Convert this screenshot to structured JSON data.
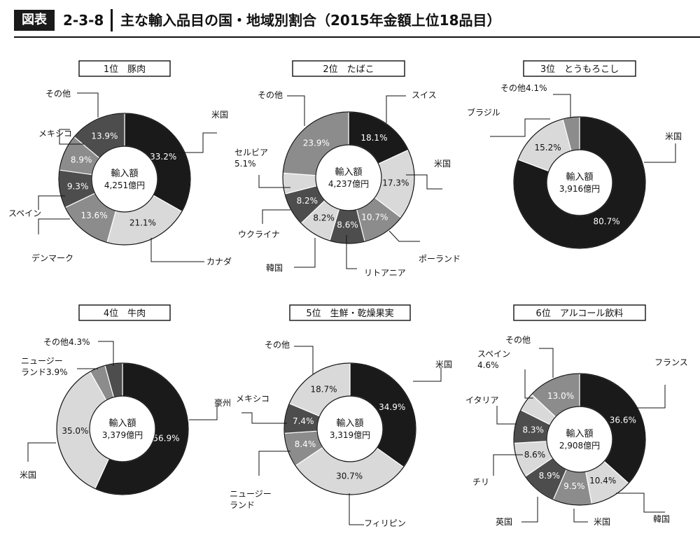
{
  "header": {
    "badge": "図表",
    "figure_number": "2-3-8",
    "title": "主な輸入品目の国・地域別割合（2015年金額上位18品目）"
  },
  "center_label": "輸入額",
  "colors": {
    "black": "#1a1a1a",
    "dark": "#4d4d4d",
    "mid": "#8c8c8c",
    "light": "#d9d9d9",
    "text": "#111111"
  },
  "chart_data": [
    {
      "type": "pie",
      "title": "1位　豚肉",
      "total": "4,251億円",
      "slices": [
        {
          "name": "米国",
          "value": 33.2,
          "label": "33.2%",
          "tone": "black"
        },
        {
          "name": "カナダ",
          "value": 21.1,
          "label": "21.1%",
          "tone": "light"
        },
        {
          "name": "デンマーク",
          "value": 13.6,
          "label": "13.6%",
          "tone": "mid"
        },
        {
          "name": "スペイン",
          "value": 9.3,
          "label": "9.3%",
          "tone": "dark"
        },
        {
          "name": "メキシコ",
          "value": 8.9,
          "label": "8.9%",
          "tone": "mid"
        },
        {
          "name": "その他",
          "value": 13.9,
          "label": "13.9%",
          "tone": "dark"
        }
      ]
    },
    {
      "type": "pie",
      "title": "2位　たばこ",
      "total": "4,237億円",
      "slices": [
        {
          "name": "スイス",
          "value": 18.1,
          "label": "18.1%",
          "tone": "black"
        },
        {
          "name": "米国",
          "value": 17.3,
          "label": "17.3%",
          "tone": "light"
        },
        {
          "name": "ポーランド",
          "value": 10.7,
          "label": "10.7%",
          "tone": "mid"
        },
        {
          "name": "リトアニア",
          "value": 8.6,
          "label": "8.6%",
          "tone": "dark"
        },
        {
          "name": "韓国",
          "value": 8.2,
          "label": "8.2%",
          "tone": "light"
        },
        {
          "name": "ウクライナ",
          "value": 8.2,
          "label": "8.2%",
          "tone": "dark"
        },
        {
          "name": "セルビア",
          "value": 5.1,
          "label": "",
          "tone": "light"
        },
        {
          "name": "その他",
          "value": 23.9,
          "label": "23.9%",
          "tone": "mid"
        }
      ]
    },
    {
      "type": "pie",
      "title": "3位　とうもろこし",
      "total": "3,916億円",
      "slices": [
        {
          "name": "米国",
          "value": 80.7,
          "label": "80.7%",
          "tone": "black"
        },
        {
          "name": "ブラジル",
          "value": 15.2,
          "label": "15.2%",
          "tone": "light"
        },
        {
          "name": "その他",
          "value": 4.1,
          "label": "",
          "tone": "mid"
        }
      ]
    },
    {
      "type": "pie",
      "title": "4位　牛肉",
      "total": "3,379億円",
      "slices": [
        {
          "name": "豪州",
          "value": 56.9,
          "label": "56.9%",
          "tone": "black"
        },
        {
          "name": "米国",
          "value": 35.0,
          "label": "35.0%",
          "tone": "light"
        },
        {
          "name": "ニュージーランド",
          "value": 3.9,
          "label": "",
          "tone": "mid"
        },
        {
          "name": "その他",
          "value": 4.3,
          "label": "",
          "tone": "dark"
        }
      ]
    },
    {
      "type": "pie",
      "title": "5位　生鮮・乾燥果実",
      "total": "3,319億円",
      "slices": [
        {
          "name": "米国",
          "value": 34.9,
          "label": "34.9%",
          "tone": "black"
        },
        {
          "name": "フィリピン",
          "value": 30.7,
          "label": "30.7%",
          "tone": "light"
        },
        {
          "name": "ニュージーランド",
          "value": 8.4,
          "label": "8.4%",
          "tone": "mid"
        },
        {
          "name": "メキシコ",
          "value": 7.4,
          "label": "7.4%",
          "tone": "dark"
        },
        {
          "name": "その他",
          "value": 18.7,
          "label": "18.7%",
          "tone": "light"
        }
      ]
    },
    {
      "type": "pie",
      "title": "6位　アルコール飲料",
      "total": "2,908億円",
      "slices": [
        {
          "name": "フランス",
          "value": 36.6,
          "label": "36.6%",
          "tone": "black"
        },
        {
          "name": "韓国",
          "value": 10.4,
          "label": "10.4%",
          "tone": "light"
        },
        {
          "name": "米国",
          "value": 9.5,
          "label": "9.5%",
          "tone": "mid"
        },
        {
          "name": "英国",
          "value": 8.9,
          "label": "8.9%",
          "tone": "dark"
        },
        {
          "name": "チリ",
          "value": 8.6,
          "label": "8.6%",
          "tone": "light"
        },
        {
          "name": "イタリア",
          "value": 8.3,
          "label": "8.3%",
          "tone": "dark"
        },
        {
          "name": "スペイン",
          "value": 4.6,
          "label": "",
          "tone": "light"
        },
        {
          "name": "その他",
          "value": 13.0,
          "label": "13.0%",
          "tone": "mid"
        }
      ]
    }
  ],
  "callouts": [
    [
      {
        "lines": [
          "米国"
        ]
      },
      {
        "lines": [
          "カナダ"
        ]
      },
      {
        "lines": [
          "デンマーク"
        ]
      },
      {
        "lines": [
          "スペイン"
        ]
      },
      {
        "lines": [
          "メキシコ"
        ]
      },
      {
        "lines": [
          "その他"
        ]
      }
    ],
    [
      {
        "lines": [
          "スイス"
        ]
      },
      {
        "lines": [
          "米国"
        ]
      },
      {
        "lines": [
          "ポーランド"
        ]
      },
      {
        "lines": [
          "リトアニア"
        ]
      },
      {
        "lines": [
          "韓国"
        ]
      },
      {
        "lines": [
          "ウクライナ"
        ]
      },
      {
        "lines": [
          "セルビア",
          "5.1%"
        ]
      },
      {
        "lines": [
          "その他"
        ]
      }
    ],
    [
      {
        "lines": [
          "米国"
        ]
      },
      {
        "lines": [
          "ブラジル"
        ]
      },
      {
        "lines": [
          "その他4.1%"
        ]
      }
    ],
    [
      {
        "lines": [
          "豪州"
        ]
      },
      {
        "lines": [
          "米国"
        ]
      },
      {
        "lines": [
          "ニュージー",
          "ランド3.9%"
        ]
      },
      {
        "lines": [
          "その他4.3%"
        ]
      }
    ],
    [
      {
        "lines": [
          "米国"
        ]
      },
      {
        "lines": [
          "フィリピン"
        ]
      },
      {
        "lines": [
          "ニュージー",
          "ランド"
        ]
      },
      {
        "lines": [
          "メキシコ"
        ]
      },
      {
        "lines": [
          "その他"
        ]
      }
    ],
    [
      {
        "lines": [
          "フランス"
        ]
      },
      {
        "lines": [
          "韓国"
        ]
      },
      {
        "lines": [
          "米国"
        ]
      },
      {
        "lines": [
          "英国"
        ]
      },
      {
        "lines": [
          "チリ"
        ]
      },
      {
        "lines": [
          "イタリア"
        ]
      },
      {
        "lines": [
          "スペイン",
          "4.6%"
        ]
      },
      {
        "lines": [
          "その他"
        ]
      }
    ]
  ]
}
